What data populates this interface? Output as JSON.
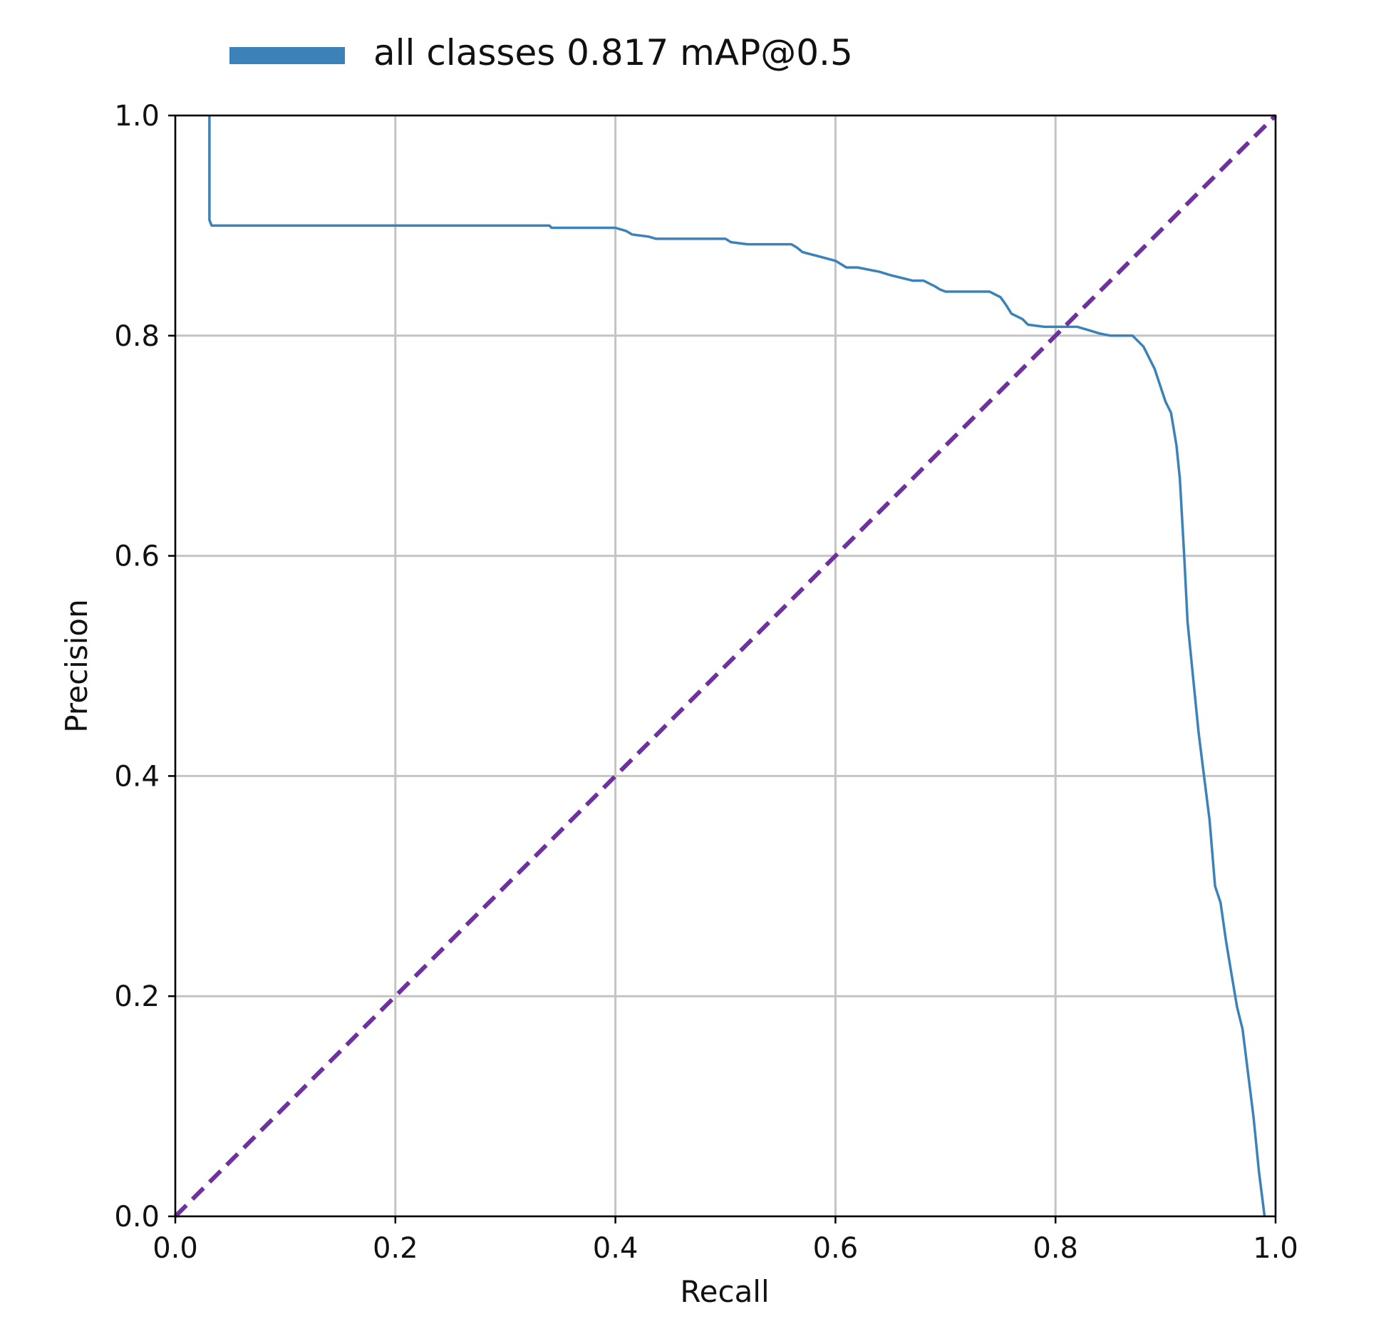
{
  "chart_data": {
    "type": "line",
    "title": "",
    "xlabel": "Recall",
    "ylabel": "Precision",
    "xlim": [
      0.0,
      1.0
    ],
    "ylim": [
      0.0,
      1.0
    ],
    "xticks": [
      "0.0",
      "0.2",
      "0.4",
      "0.6",
      "0.8",
      "1.0"
    ],
    "yticks": [
      "0.0",
      "0.2",
      "0.4",
      "0.6",
      "0.8",
      "1.0"
    ],
    "grid": true,
    "legend": {
      "position": "top",
      "label": "all classes 0.817 mAP@0.5"
    },
    "series": [
      {
        "name": "all classes 0.817 mAP@0.5",
        "color": "#3b82b8",
        "x": [
          0.031,
          0.031,
          0.033,
          0.07,
          0.34,
          0.342,
          0.4,
          0.41,
          0.415,
          0.43,
          0.437,
          0.45,
          0.5,
          0.505,
          0.52,
          0.56,
          0.565,
          0.57,
          0.6,
          0.61,
          0.62,
          0.64,
          0.65,
          0.67,
          0.68,
          0.69,
          0.695,
          0.7,
          0.71,
          0.74,
          0.75,
          0.755,
          0.76,
          0.77,
          0.775,
          0.79,
          0.8,
          0.82,
          0.84,
          0.85,
          0.87,
          0.88,
          0.89,
          0.9,
          0.905,
          0.91,
          0.913,
          0.917,
          0.92,
          0.925,
          0.93,
          0.935,
          0.94,
          0.945,
          0.95,
          0.955,
          0.96,
          0.965,
          0.97,
          0.975,
          0.98,
          0.985,
          0.99
        ],
        "y": [
          1.0,
          0.905,
          0.9,
          0.9,
          0.9,
          0.898,
          0.898,
          0.895,
          0.892,
          0.89,
          0.888,
          0.888,
          0.888,
          0.885,
          0.883,
          0.883,
          0.88,
          0.876,
          0.868,
          0.862,
          0.862,
          0.858,
          0.855,
          0.85,
          0.85,
          0.845,
          0.842,
          0.84,
          0.84,
          0.84,
          0.835,
          0.828,
          0.82,
          0.815,
          0.81,
          0.808,
          0.808,
          0.808,
          0.802,
          0.8,
          0.8,
          0.79,
          0.77,
          0.74,
          0.73,
          0.7,
          0.67,
          0.6,
          0.54,
          0.49,
          0.44,
          0.4,
          0.36,
          0.3,
          0.285,
          0.25,
          0.22,
          0.19,
          0.17,
          0.13,
          0.09,
          0.04,
          0.0
        ]
      },
      {
        "name": "",
        "color": "#7030a0",
        "style": "dashed",
        "x": [
          0.0,
          1.0
        ],
        "y": [
          0.0,
          1.0
        ]
      }
    ]
  }
}
